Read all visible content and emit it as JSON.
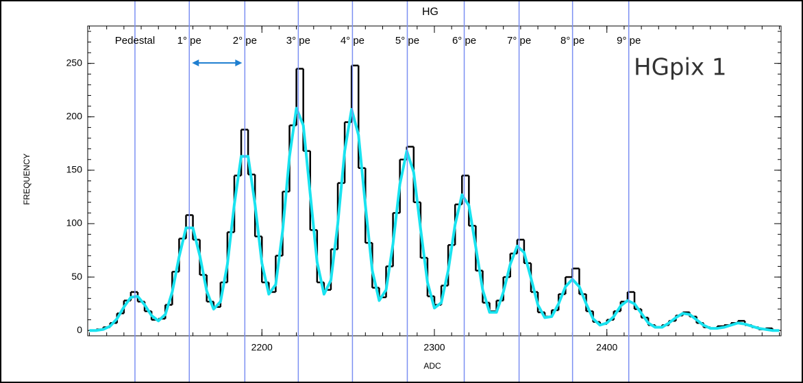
{
  "chart_data": {
    "type": "histogram",
    "title": "HG",
    "annotation": "HGpix 1",
    "x_label": "ADC",
    "y_label": "FREQUENCY",
    "xlim": [
      2099,
      2501
    ],
    "ylim": [
      -5,
      285
    ],
    "xticks": [
      2200,
      2300,
      2400
    ],
    "yticks": [
      0,
      50,
      100,
      150,
      200,
      250
    ],
    "color": "#000000",
    "bins": [
      2100,
      2104,
      2108,
      2112,
      2116,
      2120,
      2124,
      2128,
      2132,
      2136,
      2140,
      2144,
      2148,
      2152,
      2156,
      2160,
      2164,
      2168,
      2172,
      2176,
      2180,
      2184,
      2188,
      2192,
      2196,
      2200,
      2204,
      2208,
      2212,
      2216,
      2220,
      2224,
      2228,
      2232,
      2236,
      2240,
      2244,
      2248,
      2252,
      2256,
      2260,
      2264,
      2268,
      2272,
      2276,
      2280,
      2284,
      2288,
      2292,
      2296,
      2300,
      2304,
      2308,
      2312,
      2316,
      2320,
      2324,
      2328,
      2332,
      2336,
      2340,
      2344,
      2348,
      2352,
      2356,
      2360,
      2364,
      2368,
      2372,
      2376,
      2380,
      2384,
      2388,
      2392,
      2396,
      2400,
      2404,
      2408,
      2412,
      2416,
      2420,
      2424,
      2428,
      2432,
      2436,
      2440,
      2444,
      2448,
      2452,
      2456,
      2460,
      2464,
      2468,
      2472,
      2476,
      2480,
      2484,
      2488,
      2492,
      2496,
      2500
    ],
    "values": [
      0,
      1,
      3,
      7,
      16,
      28,
      36,
      27,
      18,
      10,
      11,
      24,
      55,
      86,
      108,
      85,
      52,
      27,
      22,
      45,
      92,
      145,
      188,
      146,
      88,
      45,
      36,
      70,
      130,
      192,
      245,
      168,
      94,
      45,
      38,
      76,
      138,
      195,
      248,
      152,
      82,
      40,
      31,
      60,
      110,
      160,
      172,
      120,
      68,
      32,
      24,
      42,
      80,
      118,
      145,
      98,
      56,
      26,
      18,
      28,
      50,
      72,
      85,
      63,
      36,
      17,
      13,
      19,
      34,
      50,
      58,
      34,
      18,
      8,
      6,
      10,
      18,
      27,
      36,
      20,
      12,
      5,
      3,
      5,
      9,
      14,
      17,
      13,
      7,
      3,
      2,
      4,
      5,
      7,
      9,
      5,
      3,
      1,
      2,
      0
    ],
    "fit": {
      "color": "#19e3f0",
      "x": [
        2100,
        2104,
        2108,
        2112,
        2116,
        2120,
        2124,
        2128,
        2132,
        2136,
        2140,
        2144,
        2148,
        2152,
        2156,
        2160,
        2164,
        2168,
        2172,
        2176,
        2180,
        2184,
        2188,
        2192,
        2196,
        2200,
        2204,
        2208,
        2212,
        2216,
        2220,
        2224,
        2228,
        2232,
        2236,
        2240,
        2244,
        2248,
        2252,
        2256,
        2260,
        2264,
        2268,
        2272,
        2276,
        2280,
        2284,
        2288,
        2292,
        2296,
        2300,
        2304,
        2308,
        2312,
        2316,
        2320,
        2324,
        2328,
        2332,
        2336,
        2340,
        2344,
        2348,
        2352,
        2356,
        2360,
        2364,
        2368,
        2372,
        2376,
        2380,
        2384,
        2388,
        2392,
        2396,
        2400,
        2404,
        2408,
        2412,
        2416,
        2420,
        2424,
        2428,
        2432,
        2436,
        2440,
        2444,
        2448,
        2452,
        2456,
        2460,
        2464,
        2468,
        2472,
        2476,
        2480,
        2484,
        2488,
        2492,
        2496,
        2500
      ],
      "values": [
        0,
        0,
        1,
        4,
        11,
        22,
        31,
        32,
        24,
        14,
        9,
        15,
        36,
        69,
        96,
        96,
        70,
        37,
        20,
        27,
        62,
        118,
        163,
        163,
        118,
        63,
        34,
        43,
        93,
        163,
        208,
        192,
        128,
        64,
        34,
        47,
        100,
        168,
        207,
        183,
        117,
        56,
        28,
        38,
        81,
        137,
        168,
        148,
        95,
        45,
        21,
        26,
        56,
        99,
        127,
        117,
        78,
        38,
        17,
        17,
        36,
        62,
        79,
        73,
        49,
        24,
        12,
        13,
        25,
        41,
        48,
        41,
        25,
        11,
        5,
        7,
        13,
        23,
        28,
        25,
        16,
        7,
        3,
        3,
        7,
        12,
        16,
        15,
        10,
        5,
        2,
        2,
        3,
        5,
        7,
        6,
        4,
        2,
        1,
        0,
        0
      ]
    },
    "markers": {
      "color": "#7b8ff2",
      "items": [
        {
          "label": "Pedestal",
          "x": 2126.4
        },
        {
          "label": "1° pe",
          "x": 2157.9
        },
        {
          "label": "2° pe",
          "x": 2190.1
        },
        {
          "label": "3° pe",
          "x": 2221.1
        },
        {
          "label": "4° pe",
          "x": 2252.5
        },
        {
          "label": "5° pe",
          "x": 2284.3
        },
        {
          "label": "6° pe",
          "x": 2317.3
        },
        {
          "label": "7° pe",
          "x": 2349.1
        },
        {
          "label": "8° pe",
          "x": 2380.1
        },
        {
          "label": "9° pe",
          "x": 2412.7
        }
      ]
    }
  }
}
